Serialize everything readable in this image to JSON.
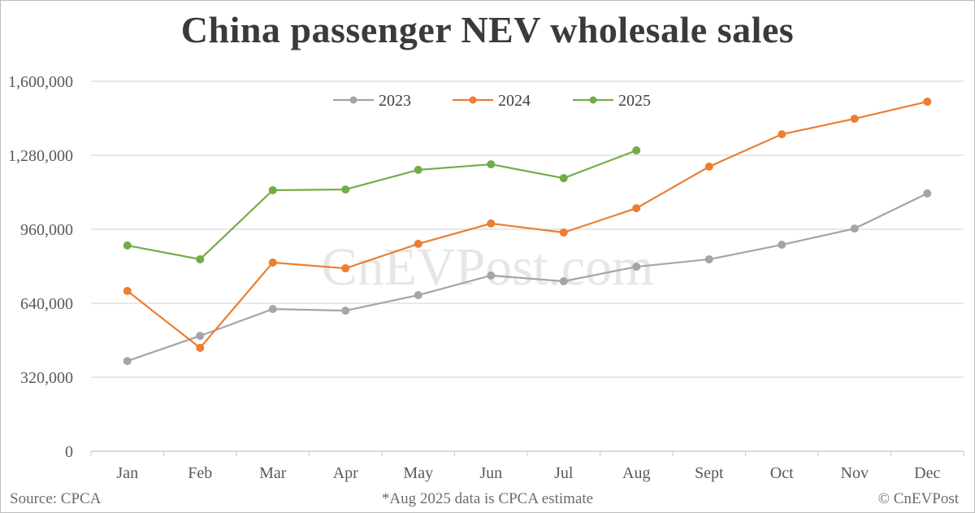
{
  "chart_data": {
    "type": "line",
    "title": "China passenger NEV wholesale sales",
    "xlabel": "",
    "ylabel": "",
    "categories": [
      "Jan",
      "Feb",
      "Mar",
      "Apr",
      "May",
      "Jun",
      "Jul",
      "Aug",
      "Sept",
      "Oct",
      "Nov",
      "Dec"
    ],
    "ylim": [
      0,
      1600000
    ],
    "yticks": [
      0,
      320000,
      640000,
      960000,
      1280000,
      1600000
    ],
    "ytick_labels": [
      "0",
      "320,000",
      "640,000",
      "960,000",
      "1,280,000",
      "1,600,000"
    ],
    "grid": true,
    "legend_position": "top-center",
    "series": [
      {
        "name": "2023",
        "color": "#a5a5a5",
        "values": [
          390000,
          499000,
          615000,
          608000,
          675000,
          760000,
          735000,
          798000,
          830000,
          893000,
          963000,
          1115000
        ]
      },
      {
        "name": "2024",
        "color": "#ed7d31",
        "values": [
          693000,
          447000,
          816000,
          791000,
          897000,
          985000,
          946000,
          1051000,
          1231000,
          1371000,
          1438000,
          1512000
        ]
      },
      {
        "name": "2025",
        "color": "#70ad47",
        "values": [
          890000,
          830000,
          1129000,
          1132000,
          1217000,
          1241000,
          1181000,
          1301000
        ]
      }
    ],
    "annotations": [
      "*Aug 2025 data is CPCA estimate"
    ],
    "watermark": "CnEVPost.com"
  },
  "header": {
    "title": "China passenger NEV wholesale sales"
  },
  "footer": {
    "source": "Source: CPCA",
    "note": "*Aug 2025 data is CPCA estimate",
    "copyright": "© CnEVPost"
  }
}
